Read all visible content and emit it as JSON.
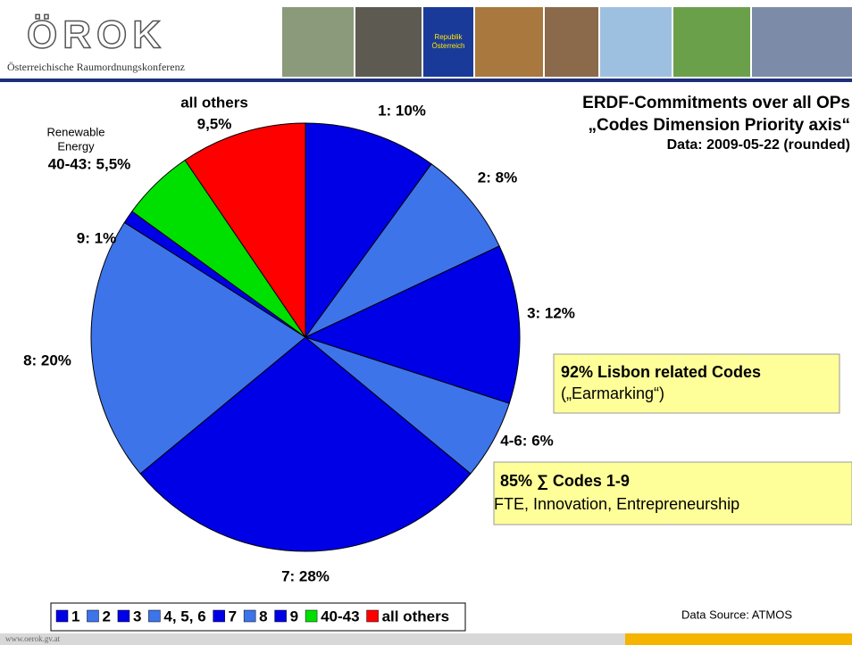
{
  "header": {
    "logo": "ÖROK",
    "subtitle": "Österreichische Raumordnungskonferenz",
    "flag_text": [
      "Republik",
      "Österreich"
    ]
  },
  "chart_data": {
    "type": "pie",
    "title": "ERDF-Commitments over all OPs",
    "subtitle": "„Codes Dimension Priority axis“",
    "note": "Data: 2009-05-22 (rounded)",
    "categories": [
      "1",
      "2",
      "3",
      "4, 5, 6",
      "7",
      "8",
      "9",
      "40-43",
      "all others"
    ],
    "values": [
      10,
      8,
      12,
      6,
      28,
      20,
      1,
      5.5,
      9.5
    ],
    "value_labels": [
      "1: 10%",
      "2: 8%",
      "3: 12%",
      "4-6: 6%",
      "7: 28%",
      "8: 20%",
      "9: 1%",
      "40-43: 5,5%",
      "9,5%"
    ],
    "colors": [
      "#0000e6",
      "#3e74ea",
      "#0000e6",
      "#3e74ea",
      "#0000e6",
      "#3e74ea",
      "#0000e6",
      "#00e000",
      "#ff0000"
    ],
    "annotation": [
      "Renewable",
      "Energy"
    ]
  },
  "boxes": [
    {
      "title": "92% Lisbon related Codes",
      "text": "(„Earmarking“)"
    },
    {
      "title": "85% ∑ Codes 1-9",
      "text": "FTE, Innovation, Entrepreneurship"
    }
  ],
  "source": "Data Source: ATMOS",
  "footer": {
    "url": "www.oerok.gv.at"
  }
}
